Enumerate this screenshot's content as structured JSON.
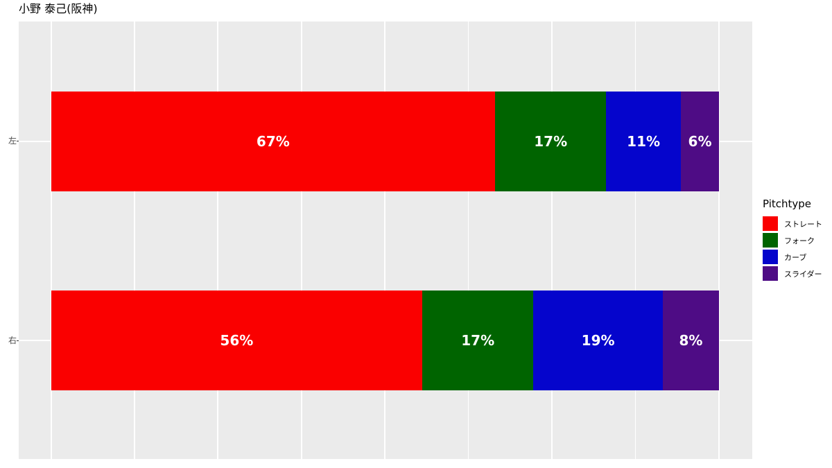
{
  "title": "小野 泰己(阪神)",
  "chart_data": {
    "type": "bar",
    "orientation": "horizontal",
    "stacked": true,
    "title": "小野 泰己(阪神)",
    "legend_title": "Pitchtype",
    "legend_position": "right",
    "categories": [
      "左",
      "右"
    ],
    "series": [
      {
        "name": "ストレート",
        "color": "#FA0000",
        "values": [
          67,
          56
        ]
      },
      {
        "name": "フォーク",
        "color": "#006400",
        "values": [
          17,
          17
        ]
      },
      {
        "name": "カーブ",
        "color": "#0505CC",
        "values": [
          11,
          19
        ]
      },
      {
        "name": "スライダー",
        "color": "#4E0C85",
        "values": [
          6,
          8
        ]
      }
    ],
    "segment_labels": [
      [
        "67%",
        "17%",
        "11%",
        "6%"
      ],
      [
        "56%",
        "17%",
        "19%",
        "8%"
      ]
    ],
    "segment_fractions_pct": [
      [
        66.5,
        16.6,
        11.2,
        5.7
      ],
      [
        55.6,
        16.6,
        19.4,
        8.4
      ]
    ],
    "x_axis": {
      "min_pct": 0,
      "max_pct": 100,
      "gridline_step_pct": 12.5,
      "tick_labels_visible": false
    },
    "panel_background": "#EBEBEB",
    "grid_color": "#FFFFFF",
    "bar_label_color": "#FFFFFF",
    "axis_text_color": "#4D4D4D"
  }
}
